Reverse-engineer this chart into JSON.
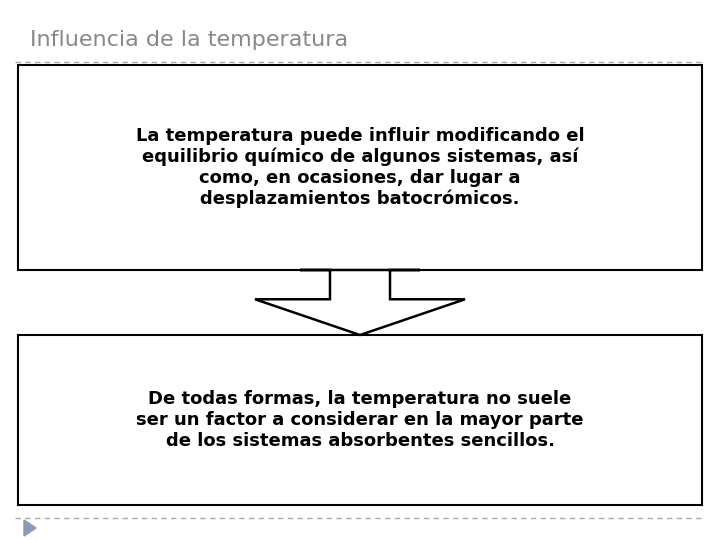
{
  "title": "Influencia de la temperatura",
  "title_color": "#888888",
  "title_fontsize": 16,
  "box1_text": "La temperatura puede influir modificando el\nequilibrio químico de algunos sistemas, así\ncomo, en ocasiones, dar lugar a\ndesplazamientos batocrómicos.",
  "box2_text": "De todas formas, la temperatura no suele\nser un factor a considerar en la mayor parte\nde los sistemas absorbentes sencillos.",
  "box_facecolor": "#ffffff",
  "box_edgecolor": "#000000",
  "text_color": "#000000",
  "text_fontsize": 13,
  "background_color": "#ffffff",
  "dashed_line_color": "#aaaaaa",
  "arrow_color": "#000000",
  "play_color": "#8899bb"
}
